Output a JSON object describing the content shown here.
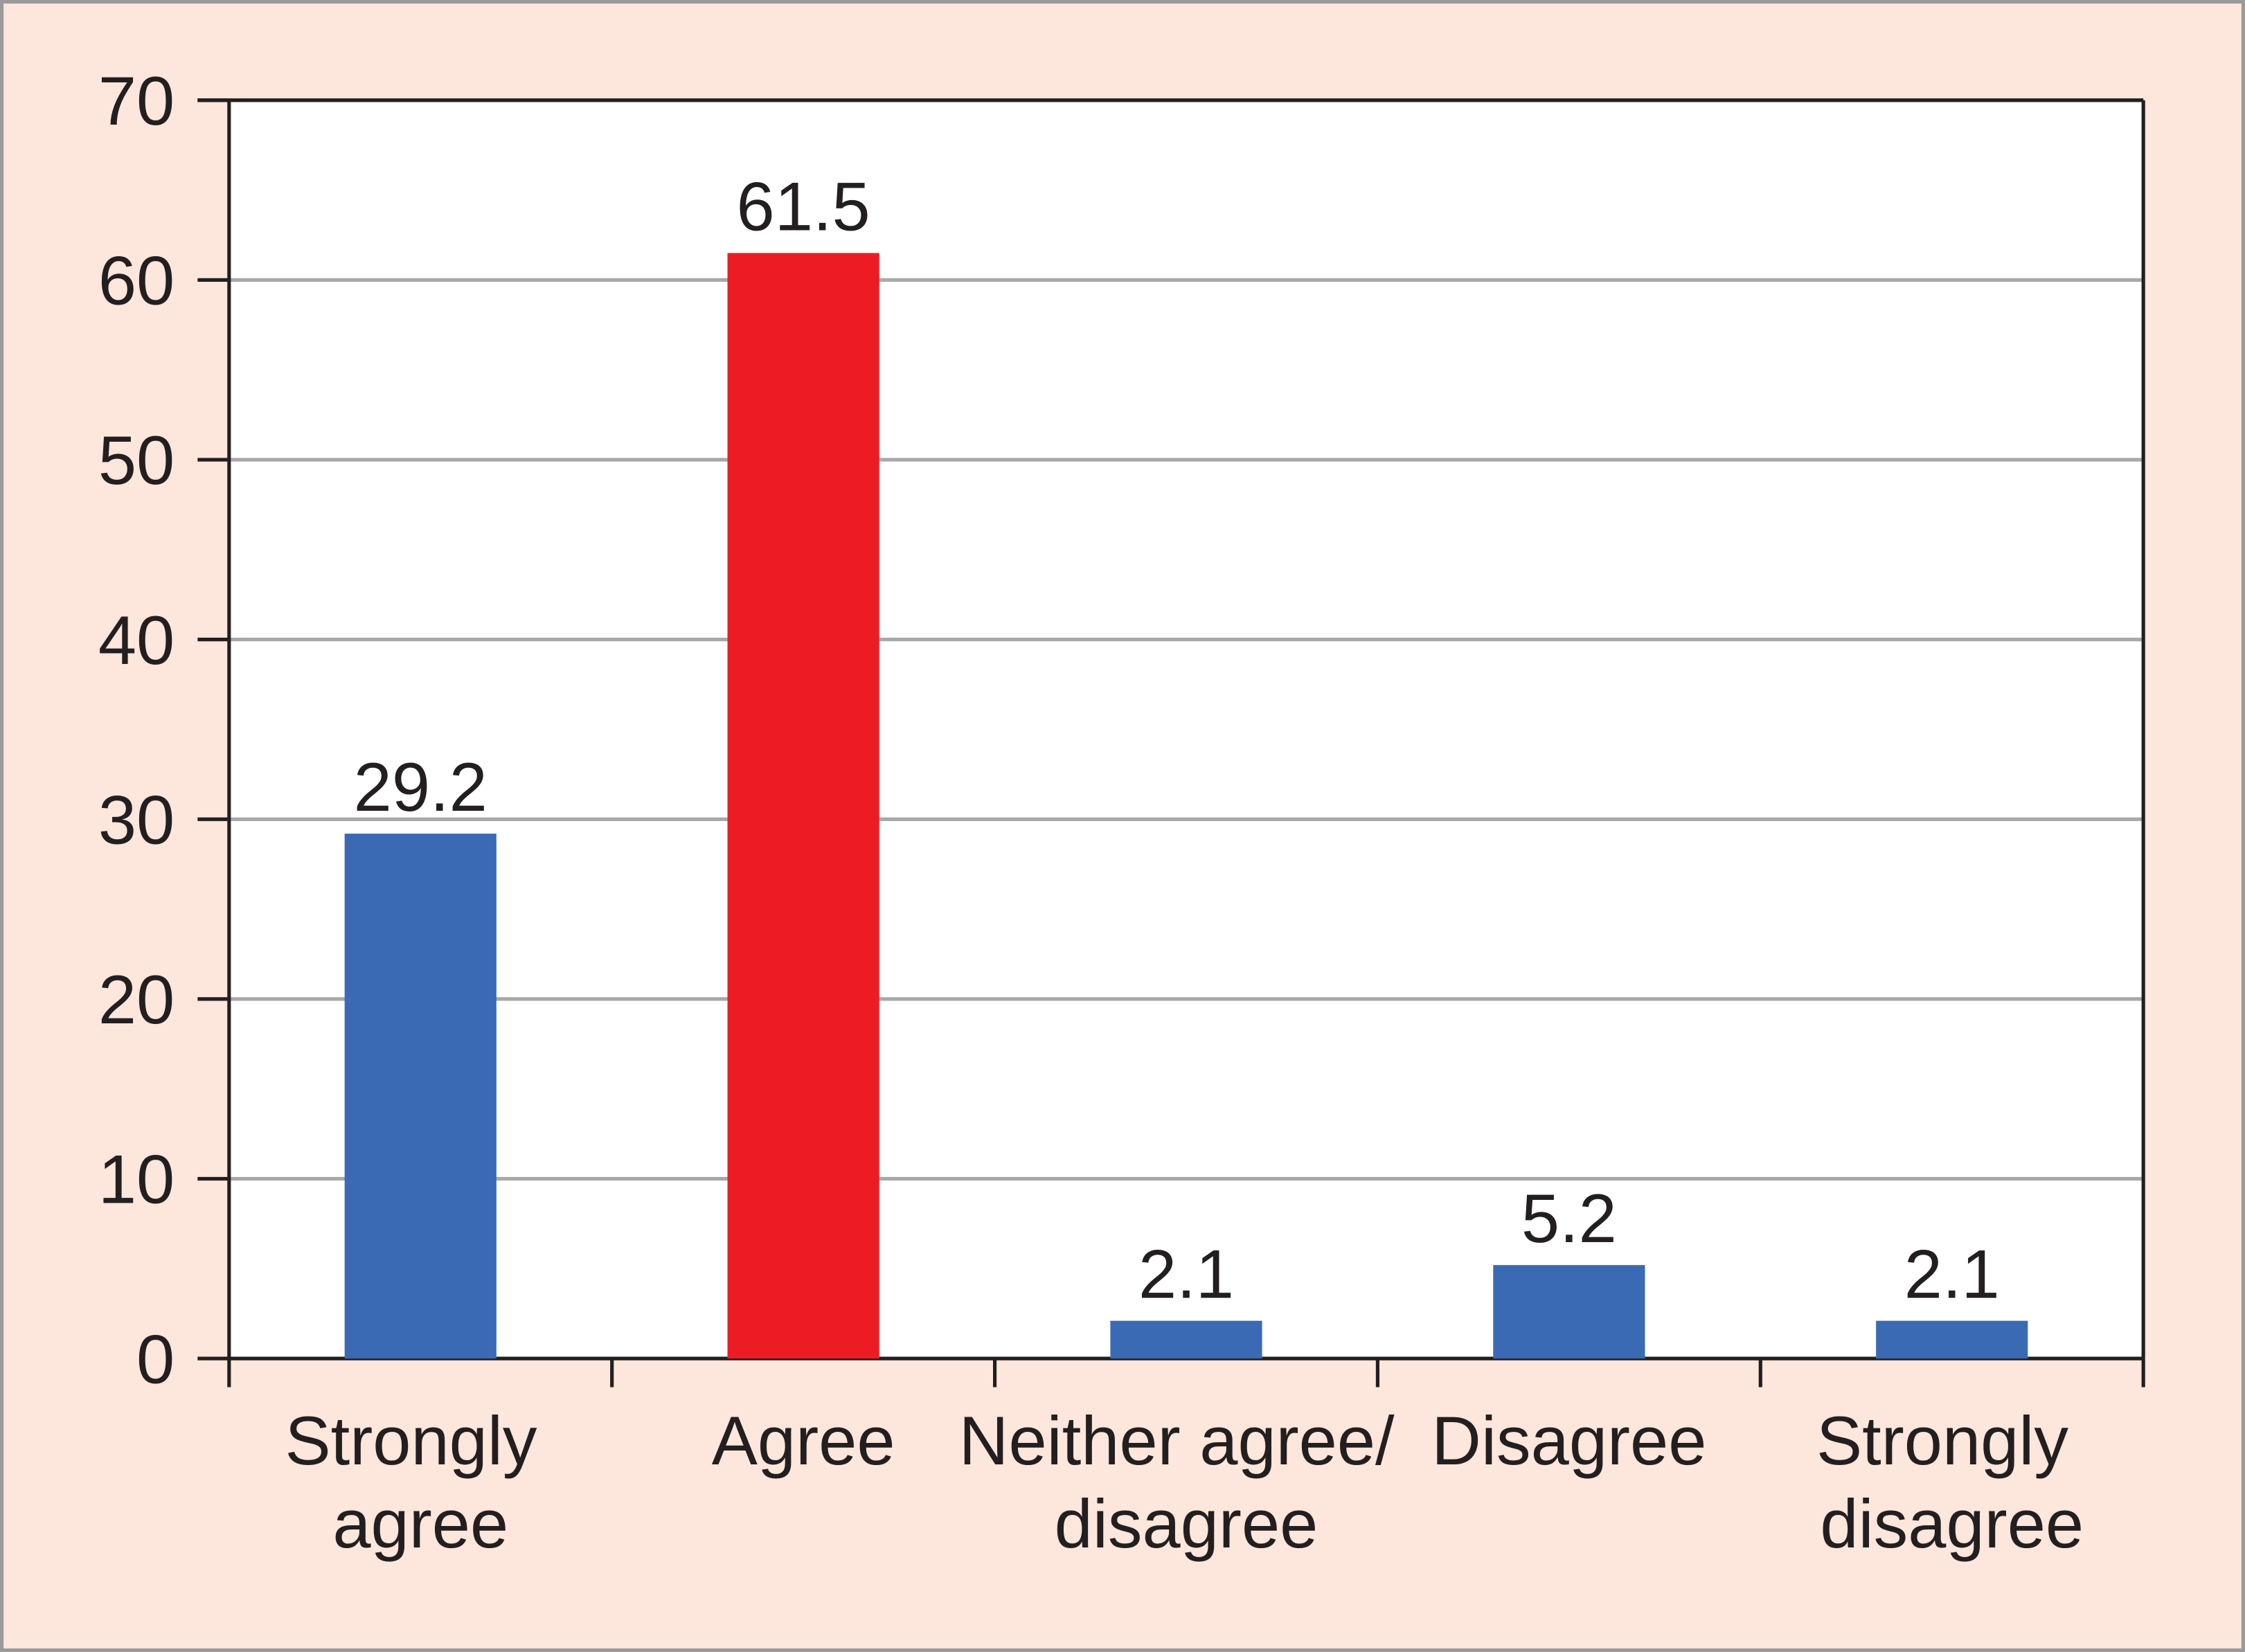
{
  "chart_data": {
    "type": "bar",
    "categories": [
      "Strongly agree",
      "Agree",
      "Neither agree/ disagree",
      "Disagree",
      "Strongly disagree"
    ],
    "values": [
      29.2,
      61.5,
      2.1,
      5.2,
      2.1
    ],
    "colors": [
      "#3a6ab4",
      "#ed1c24",
      "#3a6ab4",
      "#3a6ab4",
      "#3a6ab4"
    ],
    "ylim": [
      0,
      70
    ],
    "yticks": [
      0,
      10,
      20,
      30,
      40,
      50,
      60,
      70
    ],
    "grid": true
  }
}
